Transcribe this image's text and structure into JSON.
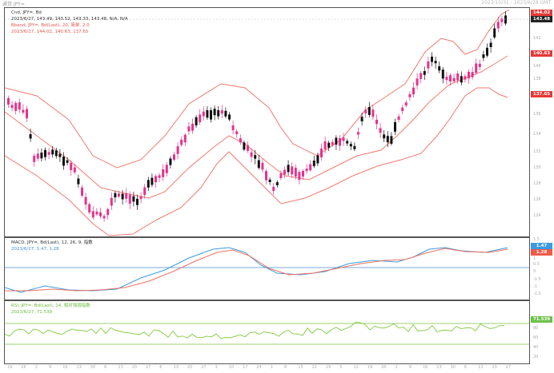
{
  "header": {
    "left_title": "通货 JPY=",
    "right_text": "2023/10/31 - 2023/6/28 GMT"
  },
  "main_panel": {
    "legend_line1": "Cnd, JPY=, Bd",
    "legend_line2": "2023/6/27, 143.49, 143.52, 143.33, 143.48, N/A, N/A",
    "legend_line3": "Bband, JPY=, Bd(Last), 20, 简单, 2.0",
    "legend_line4": "2023/6/27, 144.02, 140.63, 137.65",
    "price_ticks": [
      "142",
      "140",
      "138",
      "136",
      "134",
      "132",
      "130",
      "128",
      "126",
      "124"
    ],
    "tags": {
      "upper": "144.02",
      "last": "143.48",
      "mid": "140.63",
      "lower": "137.65"
    },
    "colors": {
      "up": "#e8328a",
      "down": "#111111",
      "band": "#f07a70"
    }
  },
  "macd_panel": {
    "legend_line1": "MACD, JPY=, Bd(Last), 12, 26, 9, 指数",
    "legend_line2": "2023/6/27, 1.47, 1.28",
    "ticks": [
      "1.5",
      "1",
      "0.5",
      "0",
      "-0.5",
      "-1",
      "-1.5"
    ],
    "tag_macd": "1.47",
    "tag_signal": "1.28",
    "colors": {
      "macd": "#3a9be0",
      "signal": "#ef7060",
      "zero": "#4a90d9"
    }
  },
  "rsi_panel": {
    "legend_line1": "RSI, JPY=, Bd(Last), 14, 相对强弱指数",
    "legend_line2": "2023/6/27, 71.539",
    "ticks": [
      "80",
      "60",
      "40",
      "20"
    ],
    "tag_value": "71.539",
    "colors": {
      "line": "#8ccf4f",
      "bands": "#7bbf45"
    }
  },
  "x_axis": {
    "labels": [
      "19",
      "26",
      "2",
      "9",
      "16",
      "23",
      "30",
      "6",
      "13",
      "20",
      "27",
      "6",
      "13",
      "20",
      "27",
      "3",
      "10",
      "17",
      "24",
      "1",
      "8",
      "15",
      "22",
      "29",
      "5",
      "12",
      "19",
      "26",
      "2",
      "9",
      "16",
      "23",
      "30",
      "6",
      "13",
      "20",
      "27"
    ]
  }
}
